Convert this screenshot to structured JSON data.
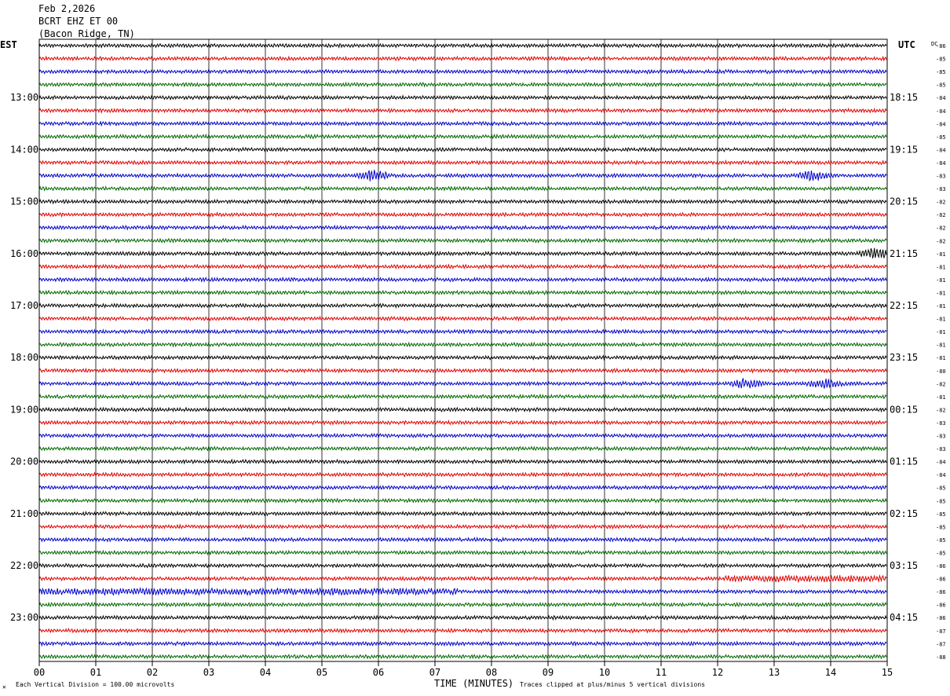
{
  "header": {
    "date": "Feb 2,2026",
    "station": "BCRT EHZ ET 00",
    "location": "(Bacon Ridge, TN)"
  },
  "axes": {
    "left_label": "EST",
    "right_label": "UTC",
    "dc_label": "DC",
    "x_title": "TIME (MINUTES)"
  },
  "footer": {
    "scale_note": "Each Vertical Division =  100.00 microvolts",
    "clip_note": "Traces clipped at plus/minus 5 vertical divisions"
  },
  "chart_data": {
    "type": "line",
    "title": "BCRT EHZ ET 00",
    "xlabel": "TIME (MINUTES)",
    "xlim": [
      0,
      15
    ],
    "x_ticks": [
      "00",
      "01",
      "02",
      "03",
      "04",
      "05",
      "06",
      "07",
      "08",
      "09",
      "10",
      "11",
      "12",
      "13",
      "14",
      "15"
    ],
    "grid": true,
    "series_colors": [
      "#000000",
      "#dd0000",
      "#0000cc",
      "#006600"
    ],
    "est_hour_labels": [
      "13:00",
      "14:00",
      "15:00",
      "16:00",
      "17:00",
      "18:00",
      "19:00",
      "20:00",
      "21:00",
      "22:00",
      "23:00"
    ],
    "utc_hour_labels": [
      "18:15",
      "19:15",
      "20:15",
      "21:15",
      "22:15",
      "23:15",
      "00:15",
      "01:15",
      "02:15",
      "03:15",
      "04:15"
    ],
    "dc_offsets": [
      -86,
      -85,
      -85,
      -85,
      -84,
      -84,
      -84,
      -85,
      -84,
      -84,
      -83,
      -83,
      -82,
      -82,
      -82,
      -82,
      -81,
      -81,
      -81,
      -81,
      -81,
      -81,
      -81,
      -81,
      -81,
      -80,
      -82,
      -81,
      -82,
      -83,
      -83,
      -83,
      -84,
      -84,
      -85,
      -85,
      -85,
      -85,
      -85,
      -85,
      -86,
      -86,
      -86,
      -86,
      -86,
      -87,
      -87,
      -88
    ],
    "events": [
      {
        "row": 10,
        "minute": 5.9,
        "note": "burst"
      },
      {
        "row": 10,
        "minute": 13.7,
        "note": "burst"
      },
      {
        "row": 16,
        "minute": 14.8,
        "note": "burst"
      },
      {
        "row": 26,
        "minute": 12.5,
        "note": "burst"
      },
      {
        "row": 26,
        "minute": 13.9,
        "note": "burst"
      }
    ],
    "noisy_segments": [
      {
        "row": 42,
        "start_minute": 0,
        "end_minute": 7.4
      },
      {
        "row": 41,
        "start_minute": 12.1,
        "end_minute": 15
      }
    ]
  }
}
